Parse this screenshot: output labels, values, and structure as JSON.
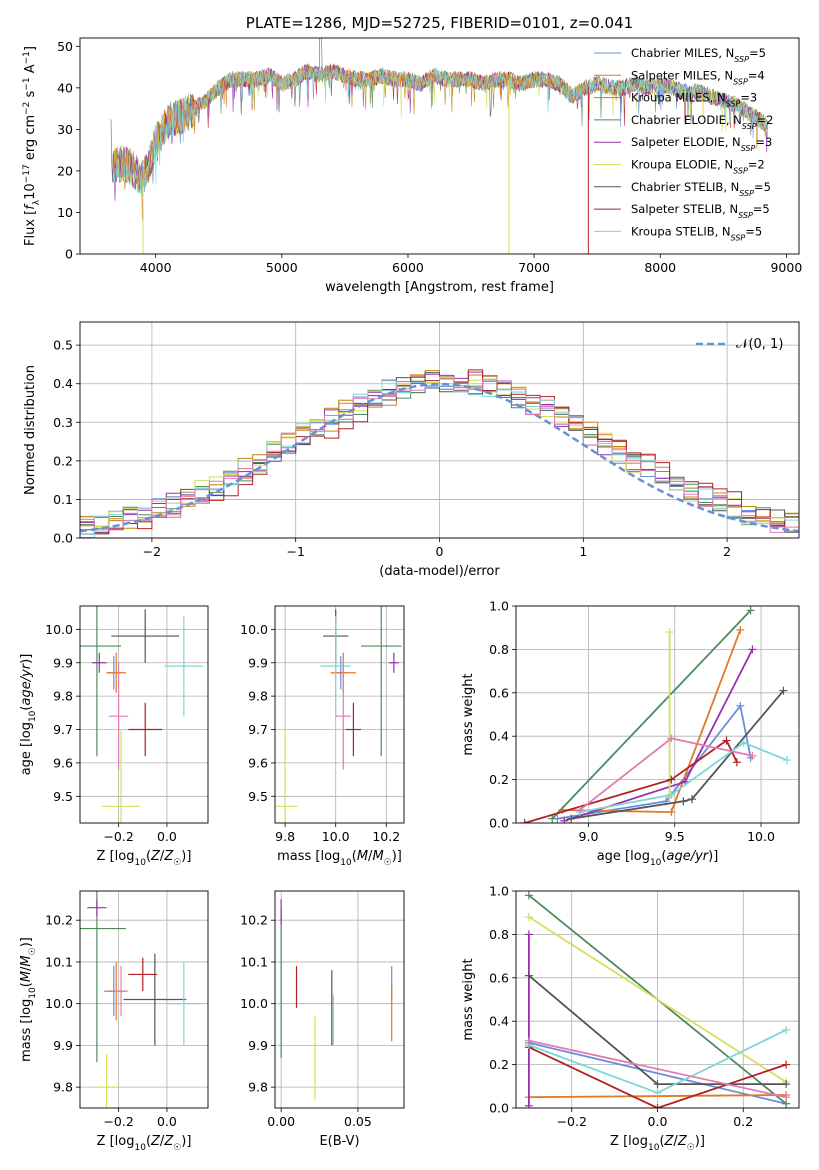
{
  "colors": [
    "#6a8fd8",
    "#e07a2a",
    "#b8860b",
    "#4f8a5f",
    "#9b2fae",
    "#d4e05a",
    "#555555",
    "#b22222",
    "#7ed6d6"
  ],
  "pink": "#e27bb0",
  "chart_data": [
    {
      "id": "spectrum",
      "type": "line",
      "title": "PLATE=1286, MJD=52725, FIBERID=0101, z=0.041",
      "xlabel": "wavelength [Angstrom, rest frame]",
      "ylabel": "Flux [f_λ10^-17 erg cm^-2 s^-1 A^-1]",
      "xlim": [
        3400,
        9100
      ],
      "ylim": [
        0,
        52
      ],
      "xticks": [
        4000,
        5000,
        6000,
        7000,
        8000,
        9000
      ],
      "yticks": [
        0,
        10,
        20,
        30,
        40,
        50
      ],
      "grid": false,
      "legend_position": "top-right",
      "legend": [
        {
          "label": "Chabrier MILES, N",
          "sub": "SSP",
          "tail": "=5"
        },
        {
          "label": "Salpeter MILES, N",
          "sub": "SSP",
          "tail": "=4"
        },
        {
          "label": "Kroupa MILES, N",
          "sub": "SSP",
          "tail": "=3"
        },
        {
          "label": "Chabrier ELODIE, N",
          "sub": "SSP",
          "tail": "=2"
        },
        {
          "label": "Salpeter ELODIE, N",
          "sub": "SSP",
          "tail": "=3"
        },
        {
          "label": "Kroupa ELODIE, N",
          "sub": "SSP",
          "tail": "=2"
        },
        {
          "label": "Chabrier STELIB, N",
          "sub": "SSP",
          "tail": "=5"
        },
        {
          "label": "Salpeter STELIB, N",
          "sub": "SSP",
          "tail": "=5"
        },
        {
          "label": "Kroupa STELIB, N",
          "sub": "SSP",
          "tail": "=5"
        }
      ],
      "continuum": [
        [
          3650,
          20
        ],
        [
          3700,
          22
        ],
        [
          3800,
          21
        ],
        [
          3900,
          18
        ],
        [
          3950,
          22
        ],
        [
          4000,
          27
        ],
        [
          4100,
          32
        ],
        [
          4200,
          33
        ],
        [
          4300,
          35
        ],
        [
          4400,
          37
        ],
        [
          4500,
          40
        ],
        [
          4600,
          42
        ],
        [
          4700,
          42
        ],
        [
          4800,
          42
        ],
        [
          4900,
          43
        ],
        [
          5000,
          41
        ],
        [
          5100,
          42
        ],
        [
          5200,
          44
        ],
        [
          5300,
          43
        ],
        [
          5400,
          44
        ],
        [
          5500,
          43
        ],
        [
          5600,
          42
        ],
        [
          5700,
          42
        ],
        [
          5800,
          43
        ],
        [
          5900,
          42
        ],
        [
          6000,
          42
        ],
        [
          6100,
          41
        ],
        [
          6200,
          43
        ],
        [
          6300,
          42
        ],
        [
          6400,
          42
        ],
        [
          6500,
          42
        ],
        [
          6600,
          41
        ],
        [
          6700,
          42
        ],
        [
          6800,
          42
        ],
        [
          6900,
          41
        ],
        [
          7000,
          42
        ],
        [
          7100,
          42
        ],
        [
          7200,
          41
        ],
        [
          7300,
          38
        ],
        [
          7400,
          40
        ],
        [
          7500,
          41
        ],
        [
          7600,
          40
        ],
        [
          7700,
          40
        ],
        [
          7800,
          41
        ],
        [
          7900,
          40
        ],
        [
          8000,
          41
        ],
        [
          8100,
          40
        ],
        [
          8200,
          39
        ],
        [
          8300,
          39
        ],
        [
          8400,
          38
        ],
        [
          8500,
          37
        ],
        [
          8600,
          36
        ],
        [
          8700,
          34
        ],
        [
          8800,
          32
        ],
        [
          8850,
          31
        ]
      ],
      "drops": [
        [
          3900,
          0
        ],
        [
          6800,
          0
        ],
        [
          7430,
          0
        ]
      ]
    },
    {
      "id": "residuals",
      "type": "line",
      "xlabel": "(data-model)/error",
      "ylabel": "Normed distribution",
      "xlim": [
        -2.5,
        2.5
      ],
      "ylim": [
        0,
        0.56
      ],
      "xticks": [
        -2,
        -1,
        0,
        1,
        2
      ],
      "yticks": [
        0.0,
        0.1,
        0.2,
        0.3,
        0.4,
        0.5
      ],
      "grid": true,
      "legend_position": "top-right",
      "legend": [
        "𝒩(0, 1)"
      ],
      "bin_width": 0.1
    },
    {
      "id": "z-age",
      "type": "scatter",
      "xlabel": "Z [log10(Z/Z☉)]",
      "ylabel": "age [log10(age/yr)]",
      "xlim": [
        -0.36,
        0.17
      ],
      "ylim": [
        9.42,
        10.07
      ],
      "xticks": [
        -0.2,
        0.0
      ],
      "yticks": [
        9.5,
        9.6,
        9.7,
        9.8,
        9.9,
        10.0
      ],
      "grid": true,
      "points": [
        {
          "c": 0,
          "x": -0.22,
          "y": 9.87,
          "xe": 0.03,
          "ye": 0.05
        },
        {
          "c": 1,
          "x": -0.21,
          "y": 9.87,
          "xe": 0.04,
          "ye": 0.06
        },
        {
          "c": 3,
          "x": -0.29,
          "y": 9.95,
          "xe": 0.1,
          "ye": 0.33
        },
        {
          "c": 4,
          "x": -0.28,
          "y": 9.9,
          "xe": 0.03,
          "ye": 0.03
        },
        {
          "c": 5,
          "x": -0.19,
          "y": 9.47,
          "xe": 0.08,
          "ye": 0.23
        },
        {
          "c": 6,
          "x": -0.09,
          "y": 9.98,
          "xe": 0.14,
          "ye": 0.08
        },
        {
          "c": 7,
          "x": -0.09,
          "y": 9.7,
          "xe": 0.07,
          "ye": 0.08
        },
        {
          "c": 8,
          "x": 0.07,
          "y": 9.89,
          "xe": 0.08,
          "ye": 0.15
        },
        {
          "c": 9,
          "x": -0.2,
          "y": 9.74,
          "xe": 0.04,
          "ye": 0.16
        }
      ]
    },
    {
      "id": "mass-age",
      "type": "scatter",
      "xlabel": "mass [log10(M/M☉)]",
      "ylabel": "",
      "xlim": [
        9.76,
        10.27
      ],
      "ylim": [
        9.42,
        10.07
      ],
      "xticks": [
        9.8,
        10.0,
        10.2
      ],
      "yticks": [
        9.5,
        9.6,
        9.7,
        9.8,
        9.9,
        10.0
      ],
      "grid": true,
      "points": [
        {
          "c": 0,
          "x": 10.02,
          "y": 9.87,
          "xe": 0.03,
          "ye": 0.05
        },
        {
          "c": 1,
          "x": 10.03,
          "y": 9.87,
          "xe": 0.05,
          "ye": 0.06
        },
        {
          "c": 3,
          "x": 10.18,
          "y": 9.95,
          "xe": 0.08,
          "ye": 0.33
        },
        {
          "c": 4,
          "x": 10.23,
          "y": 9.9,
          "xe": 0.02,
          "ye": 0.03
        },
        {
          "c": 5,
          "x": 9.8,
          "y": 9.47,
          "xe": 0.05,
          "ye": 0.23
        },
        {
          "c": 6,
          "x": 10.0,
          "y": 9.98,
          "xe": 0.05,
          "ye": 0.08
        },
        {
          "c": 7,
          "x": 10.07,
          "y": 9.7,
          "xe": 0.03,
          "ye": 0.08
        },
        {
          "c": 8,
          "x": 10.0,
          "y": 9.89,
          "xe": 0.06,
          "ye": 0.15
        },
        {
          "c": 9,
          "x": 10.03,
          "y": 9.74,
          "xe": 0.03,
          "ye": 0.16
        }
      ]
    },
    {
      "id": "weight-age",
      "type": "line",
      "xlabel": "age [log10(age/yr)]",
      "ylabel": "mass weight",
      "xlim": [
        8.58,
        10.22
      ],
      "ylim": [
        0,
        1.0
      ],
      "xticks": [
        9.0,
        9.5,
        10.0
      ],
      "yticks": [
        0.0,
        0.2,
        0.4,
        0.6,
        0.8,
        1.0
      ],
      "grid": true,
      "series": [
        {
          "c": 0,
          "x": [
            8.82,
            9.45,
            9.88,
            9.94
          ],
          "y": [
            0.02,
            0.1,
            0.54,
            0.3
          ]
        },
        {
          "c": 1,
          "x": [
            8.85,
            9.48,
            9.88
          ],
          "y": [
            0.06,
            0.05,
            0.89
          ]
        },
        {
          "c": 3,
          "x": [
            8.79,
            9.94
          ],
          "y": [
            0.02,
            0.98
          ]
        },
        {
          "c": 4,
          "x": [
            8.86,
            9.56,
            9.95
          ],
          "y": [
            0.01,
            0.19,
            0.8
          ]
        },
        {
          "c": 5,
          "x": [
            9.47,
            9.47
          ],
          "y": [
            0.12,
            0.88
          ]
        },
        {
          "c": 6,
          "x": [
            8.9,
            9.55,
            9.6,
            10.13
          ],
          "y": [
            0.02,
            0.1,
            0.11,
            0.61
          ]
        },
        {
          "c": 7,
          "x": [
            8.63,
            9.48,
            9.8,
            9.86
          ],
          "y": [
            0.0,
            0.2,
            0.38,
            0.28
          ]
        },
        {
          "c": 8,
          "x": [
            8.95,
            9.48,
            9.9,
            10.15
          ],
          "y": [
            0.05,
            0.13,
            0.37,
            0.29
          ]
        },
        {
          "c": 9,
          "x": [
            8.95,
            9.48,
            9.95
          ],
          "y": [
            0.06,
            0.39,
            0.31
          ]
        }
      ]
    },
    {
      "id": "z-mass",
      "type": "scatter",
      "xlabel": "Z [log10(Z/Z☉)]",
      "ylabel": "mass [log10(M/M☉)]",
      "xlim": [
        -0.36,
        0.17
      ],
      "ylim": [
        9.75,
        10.27
      ],
      "xticks": [
        -0.2,
        0.0
      ],
      "yticks": [
        9.8,
        9.9,
        10.0,
        10.1,
        10.2
      ],
      "grid": true,
      "points": [
        {
          "c": 0,
          "x": -0.22,
          "y": 10.03,
          "xe": 0.04,
          "ye": 0.06
        },
        {
          "c": 1,
          "x": -0.21,
          "y": 10.03,
          "xe": 0.04,
          "ye": 0.07
        },
        {
          "c": 3,
          "x": -0.29,
          "y": 10.18,
          "xe": 0.12,
          "ye": 0.32
        },
        {
          "c": 4,
          "x": -0.29,
          "y": 10.23,
          "xe": 0.04,
          "ye": 0.02
        },
        {
          "c": 5,
          "x": -0.25,
          "y": 9.8,
          "xe": 0.05,
          "ye": 0.08
        },
        {
          "c": 6,
          "x": -0.05,
          "y": 10.01,
          "xe": 0.13,
          "ye": 0.11
        },
        {
          "c": 7,
          "x": -0.1,
          "y": 10.07,
          "xe": 0.06,
          "ye": 0.04
        },
        {
          "c": 8,
          "x": 0.07,
          "y": 10.0,
          "xe": 0.07,
          "ye": 0.1
        },
        {
          "c": 9,
          "x": -0.19,
          "y": 10.03,
          "xe": 0.03,
          "ye": 0.06
        }
      ]
    },
    {
      "id": "ebv-mass",
      "type": "scatter",
      "xlabel": "E(B-V)",
      "ylabel": "",
      "xlim": [
        -0.004,
        0.08
      ],
      "ylim": [
        9.75,
        10.27
      ],
      "xticks": [
        0.0,
        0.05
      ],
      "yticks": [
        9.8,
        9.9,
        10.0,
        10.1,
        10.2
      ],
      "grid": true,
      "points": [
        {
          "c": 0,
          "x": 0.072,
          "y": 10.05,
          "xe": 0,
          "ye": 0.04
        },
        {
          "c": 1,
          "x": 0.072,
          "y": 9.98,
          "xe": 0,
          "ye": 0.07
        },
        {
          "c": 3,
          "x": 0.0,
          "y": 10.05,
          "xe": 0,
          "ye": 0.18
        },
        {
          "c": 4,
          "x": 0.0,
          "y": 10.22,
          "xe": 0,
          "ye": 0.03
        },
        {
          "c": 5,
          "x": 0.022,
          "y": 9.87,
          "xe": 0,
          "ye": 0.1
        },
        {
          "c": 6,
          "x": 0.033,
          "y": 9.99,
          "xe": 0,
          "ye": 0.09
        },
        {
          "c": 7,
          "x": 0.01,
          "y": 10.04,
          "xe": 0,
          "ye": 0.05
        },
        {
          "c": 8,
          "x": 0.034,
          "y": 9.96,
          "xe": 0,
          "ye": 0.06
        }
      ]
    },
    {
      "id": "weight-z",
      "type": "line",
      "xlabel": "Z [log10(Z/Z☉)]",
      "ylabel": "mass weight",
      "xlim": [
        -0.33,
        0.33
      ],
      "ylim": [
        0,
        1.0
      ],
      "xticks": [
        -0.2,
        0.0,
        0.2
      ],
      "yticks": [
        0.0,
        0.2,
        0.4,
        0.6,
        0.8,
        1.0
      ],
      "grid": true,
      "series": [
        {
          "c": 0,
          "x": [
            -0.3,
            0.3
          ],
          "y": [
            0.3,
            0.02
          ]
        },
        {
          "c": 1,
          "x": [
            -0.3,
            0.3
          ],
          "y": [
            0.05,
            0.06
          ]
        },
        {
          "c": 3,
          "x": [
            -0.3,
            0.3
          ],
          "y": [
            0.98,
            0.02
          ]
        },
        {
          "c": 4,
          "x": [
            -0.3,
            -0.3
          ],
          "y": [
            0.01,
            0.8
          ]
        },
        {
          "c": 5,
          "x": [
            -0.3,
            0.3
          ],
          "y": [
            0.88,
            0.12
          ]
        },
        {
          "c": 6,
          "x": [
            -0.3,
            0.0,
            0.3
          ],
          "y": [
            0.61,
            0.11,
            0.11
          ]
        },
        {
          "c": 7,
          "x": [
            -0.3,
            0.0,
            0.3
          ],
          "y": [
            0.28,
            0.0,
            0.2
          ]
        },
        {
          "c": 8,
          "x": [
            -0.3,
            0.0,
            0.3
          ],
          "y": [
            0.29,
            0.07,
            0.36
          ]
        },
        {
          "c": 9,
          "x": [
            -0.3,
            0.3
          ],
          "y": [
            0.31,
            0.05
          ]
        }
      ]
    }
  ]
}
